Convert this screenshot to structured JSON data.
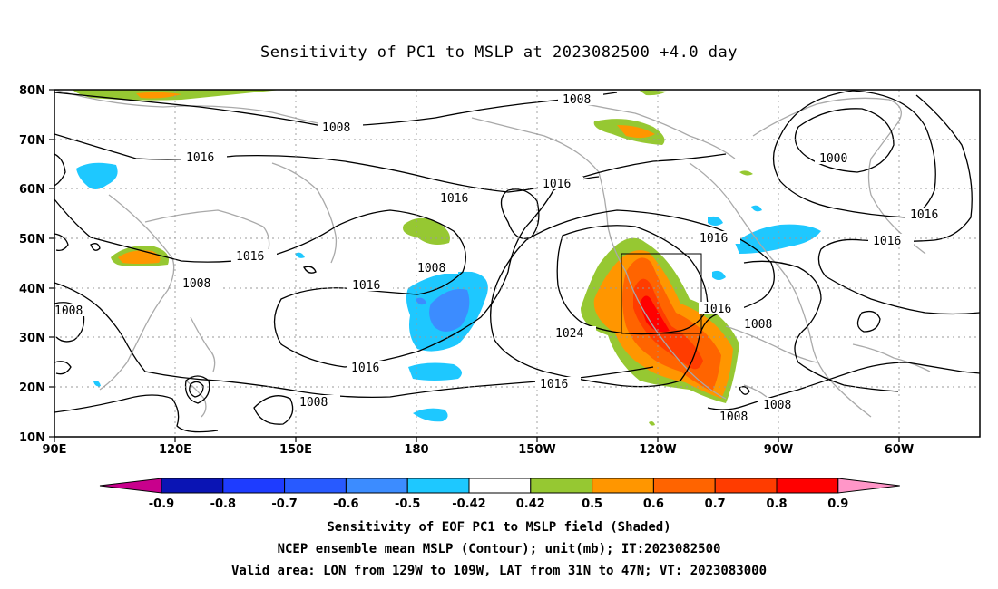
{
  "title": "Sensitivity of PC1 to MSLP at 2023082500 +4.0 day",
  "map": {
    "lat_labels": [
      "80N",
      "70N",
      "60N",
      "50N",
      "40N",
      "30N",
      "20N",
      "10N"
    ],
    "lon_labels": [
      "90E",
      "120E",
      "150E",
      "180",
      "150W",
      "120W",
      "90W",
      "60W"
    ],
    "valid_box": {
      "lon_from": "129W",
      "lon_to": "109W",
      "lat_from": "31N",
      "lat_to": "47N"
    },
    "contour_labels": [
      "1008",
      "1008",
      "1016",
      "1016",
      "1016",
      "1016",
      "1008",
      "1016",
      "1008",
      "1016",
      "1016",
      "1024",
      "1016",
      "1016",
      "1008",
      "1000",
      "1016",
      "1016",
      "1008",
      "1008",
      "1008",
      "1008",
      "1008"
    ]
  },
  "colorbar": {
    "labels": [
      "-0.9",
      "-0.8",
      "-0.7",
      "-0.6",
      "-0.5",
      "-0.42",
      "0.42",
      "0.5",
      "0.6",
      "0.7",
      "0.8",
      "0.9"
    ],
    "colors": [
      "#c8008c",
      "#0a14b4",
      "#1e3cff",
      "#285aff",
      "#3c8cff",
      "#1ec8ff",
      "#ffffff",
      "#96c832",
      "#ff9600",
      "#ff6400",
      "#ff3c00",
      "#ff0000",
      "#ff96c8"
    ]
  },
  "footer": {
    "line1": "Sensitivity of EOF PC1 to MSLP field (Shaded)",
    "line2": "NCEP ensemble mean MSLP (Contour); unit(mb); IT:2023082500",
    "line3": "Valid area: LON from 129W to 109W, LAT from 31N to 47N; VT: 2023083000"
  }
}
